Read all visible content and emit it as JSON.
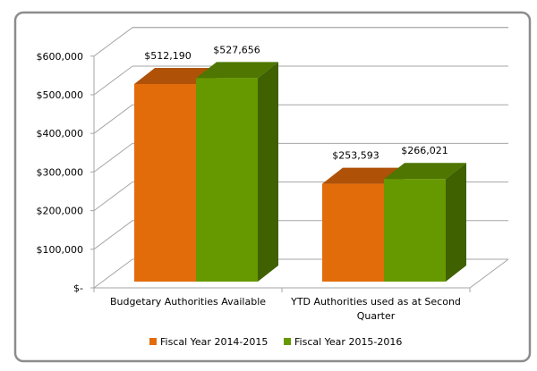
{
  "chart_data": {
    "type": "bar",
    "style": "3d-clustered-column",
    "categories": [
      "Budgetary Authorities Available",
      "YTD Authorities used as at Second Quarter"
    ],
    "category_label_lines": [
      [
        "Budgetary Authorities Available"
      ],
      [
        "YTD Authorities used as at Second",
        "Quarter"
      ]
    ],
    "series": [
      {
        "name": "Fiscal Year 2014-2015",
        "values": [
          512190,
          253593
        ],
        "data_labels": [
          "$512,190",
          "$253,593"
        ],
        "color": "#E36C0A",
        "top_color": "#AF5208",
        "side_color": "#8A4006"
      },
      {
        "name": "Fiscal Year 2015-2016",
        "values": [
          527656,
          266021
        ],
        "data_labels": [
          "$527,656",
          "$266,021"
        ],
        "color": "#669900",
        "top_color": "#4E7600",
        "side_color": "#3F6100"
      }
    ],
    "yticks": [
      0,
      100000,
      200000,
      300000,
      400000,
      500000,
      600000
    ],
    "ytick_labels": [
      "$-",
      "$100,000",
      "$200,000",
      "$300,000",
      "$400,000",
      "$500,000",
      "$600,000"
    ],
    "ylim": [
      0,
      600000
    ],
    "grid": true,
    "legend": "bottom",
    "title": "",
    "xlabel": "",
    "ylabel": ""
  }
}
